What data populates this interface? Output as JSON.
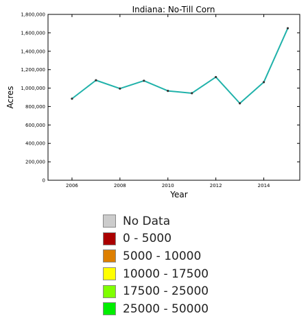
{
  "chart_data": {
    "type": "line",
    "title": "Indiana: No-Till Corn",
    "xlabel": "Year",
    "ylabel": "Acres",
    "x": [
      2006,
      2007,
      2008,
      2009,
      2010,
      2011,
      2012,
      2013,
      2014,
      2015
    ],
    "series": [
      {
        "values": [
          885000,
          1085000,
          995000,
          1080000,
          970000,
          945000,
          1120000,
          835000,
          1065000,
          1650000
        ],
        "color": "#20b2aa"
      }
    ],
    "xlim": [
      2005,
      2015.5
    ],
    "ylim": [
      0,
      1800000
    ],
    "xticks": [
      2006,
      2008,
      2010,
      2012,
      2014
    ],
    "xtick_labels": [
      "2006",
      "2008",
      "2010",
      "2012",
      "2014"
    ],
    "yticks": [
      0,
      200000,
      400000,
      600000,
      800000,
      1000000,
      1200000,
      1400000,
      1600000,
      1800000
    ],
    "ytick_labels": [
      "0",
      "200,000",
      "400,000",
      "600,000",
      "800,000",
      "1,000,000",
      "1,200,000",
      "1,400,000",
      "1,600,000",
      "1,800,000"
    ],
    "grid": false,
    "marker_color": "#333333"
  },
  "legend": {
    "items": [
      {
        "label": "No Data",
        "color": "#cccccc"
      },
      {
        "label": "0 - 5000",
        "color": "#aa0000"
      },
      {
        "label": "5000 - 10000",
        "color": "#dd7f00"
      },
      {
        "label": "10000 - 17500",
        "color": "#ffff00"
      },
      {
        "label": "17500 - 25000",
        "color": "#7fff00"
      },
      {
        "label": "25000 - 50000",
        "color": "#00ee00"
      }
    ]
  }
}
